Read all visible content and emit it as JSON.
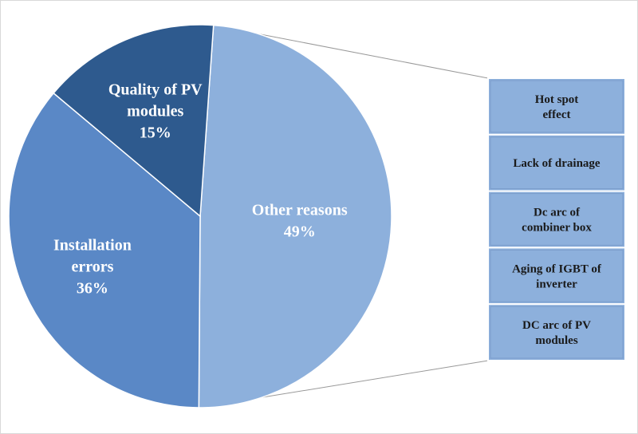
{
  "chart_data": {
    "type": "pie",
    "slices": [
      {
        "label_lines": [
          "Other reasons",
          "49%"
        ],
        "value": 49,
        "color": "#8db0dc"
      },
      {
        "label_lines": [
          "Installation",
          "errors",
          "36%"
        ],
        "value": 36,
        "color": "#5a88c6"
      },
      {
        "label_lines": [
          "Quality of PV",
          "modules",
          "15%"
        ],
        "value": 15,
        "color": "#2e5a8e"
      }
    ],
    "breakdown_of": "Other reasons",
    "breakdown_items": [
      {
        "label_lines": [
          "Hot spot",
          "effect"
        ]
      },
      {
        "label_lines": [
          "Lack of drainage"
        ]
      },
      {
        "label_lines": [
          "Dc arc of",
          "combiner box"
        ]
      },
      {
        "label_lines": [
          "Aging of IGBT of",
          "inverter"
        ]
      },
      {
        "label_lines": [
          "DC arc of PV",
          "modules"
        ]
      }
    ],
    "colors": {
      "slice_stroke": "#ffffff",
      "box_fill": "#8db0dc",
      "box_stroke": "#ffffff",
      "connector": "#999999",
      "background": "#ffffff"
    }
  }
}
